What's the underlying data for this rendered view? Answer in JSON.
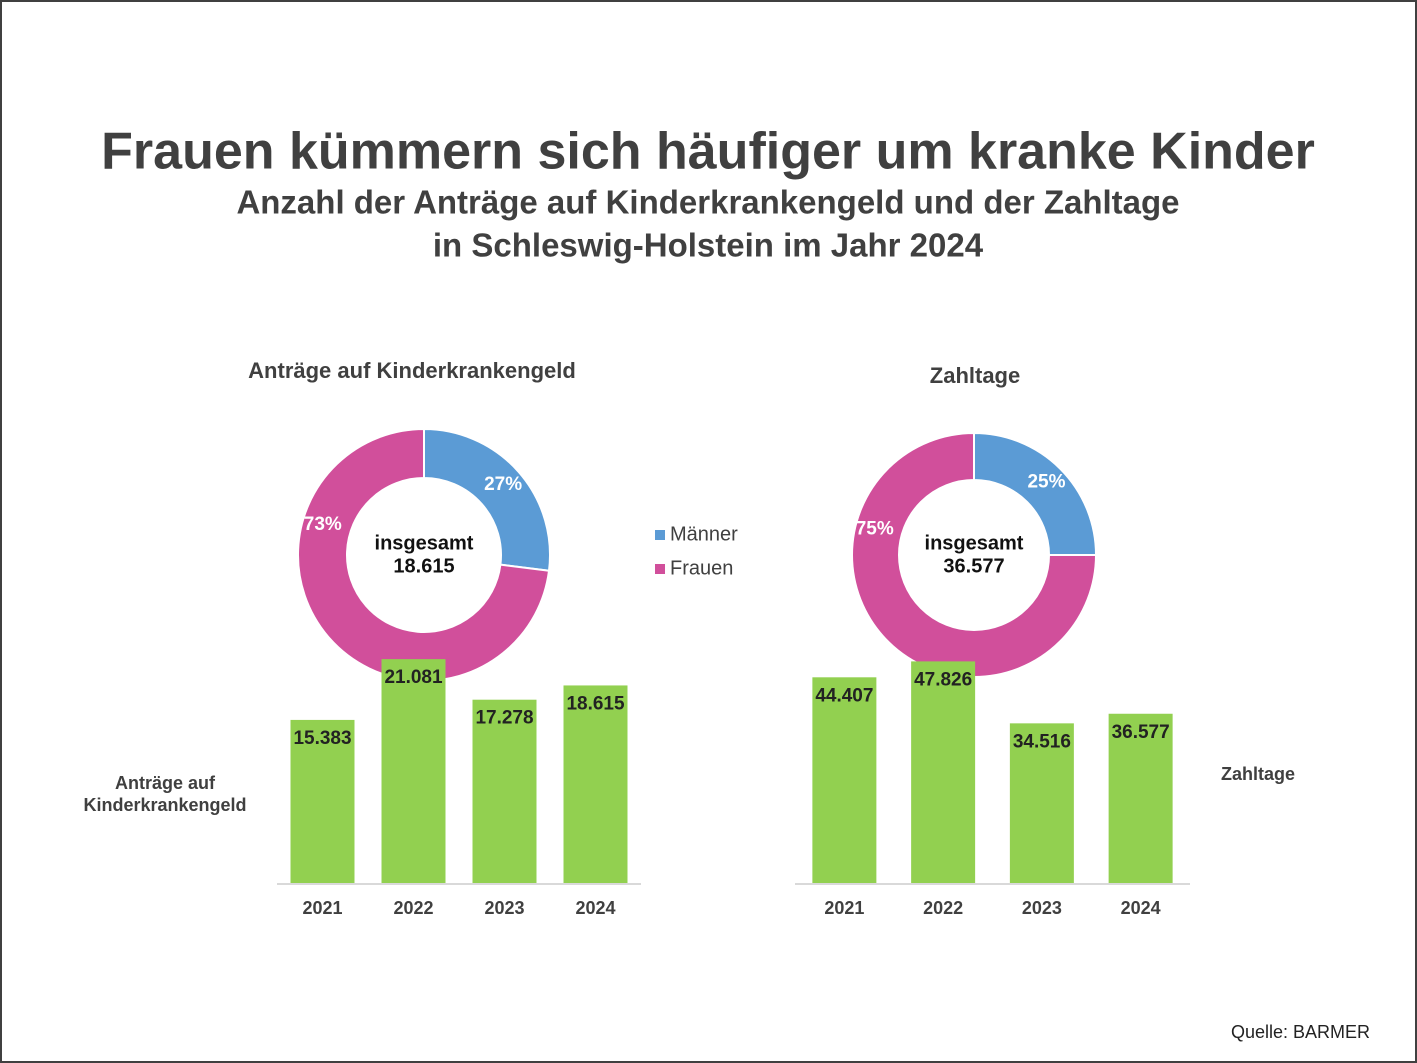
{
  "title": "Frauen kümmern sich häufiger um kranke Kinder",
  "subtitle": [
    "Anzahl der Anträge auf Kinderkrankengeld und der Zahltage",
    "in Schleswig-Holstein im Jahr 2024"
  ],
  "source": "Quelle: BARMER",
  "chart_data": [
    {
      "type": "donut",
      "title": "Anträge auf Kinderkrankengeld",
      "categories": [
        "Männer",
        "Frauen"
      ],
      "values": [
        27,
        73
      ],
      "value_labels": [
        "27%",
        "73%"
      ],
      "colors": [
        "#5b9bd5",
        "#d14f9b"
      ],
      "center_label": "insgesamt",
      "total": 18615,
      "total_label": "18.615",
      "legend": true
    },
    {
      "type": "donut",
      "title": "Zahltage",
      "categories": [
        "Männer",
        "Frauen"
      ],
      "values": [
        25,
        75
      ],
      "value_labels": [
        "25%",
        "75%"
      ],
      "colors": [
        "#5b9bd5",
        "#d14f9b"
      ],
      "center_label": "insgesamt",
      "total": 36577,
      "total_label": "36.577",
      "legend": false
    },
    {
      "type": "bar",
      "name": [
        "Anträge auf",
        "Kinderkrankengeld"
      ],
      "categories": [
        "2021",
        "2022",
        "2023",
        "2024"
      ],
      "values": [
        15383,
        21081,
        17278,
        18615
      ],
      "value_labels": [
        "15.383",
        "21.081",
        "17.278",
        "18.615"
      ],
      "color": "#92d050",
      "ylim": [
        0,
        24000
      ]
    },
    {
      "type": "bar",
      "name": [
        "Zahltage"
      ],
      "categories": [
        "2021",
        "2022",
        "2023",
        "2024"
      ],
      "values": [
        44407,
        47826,
        34516,
        36577
      ],
      "value_labels": [
        "44.407",
        "47.826",
        "34.516",
        "36.577"
      ],
      "color": "#92d050",
      "ylim": [
        0,
        55000
      ]
    }
  ]
}
